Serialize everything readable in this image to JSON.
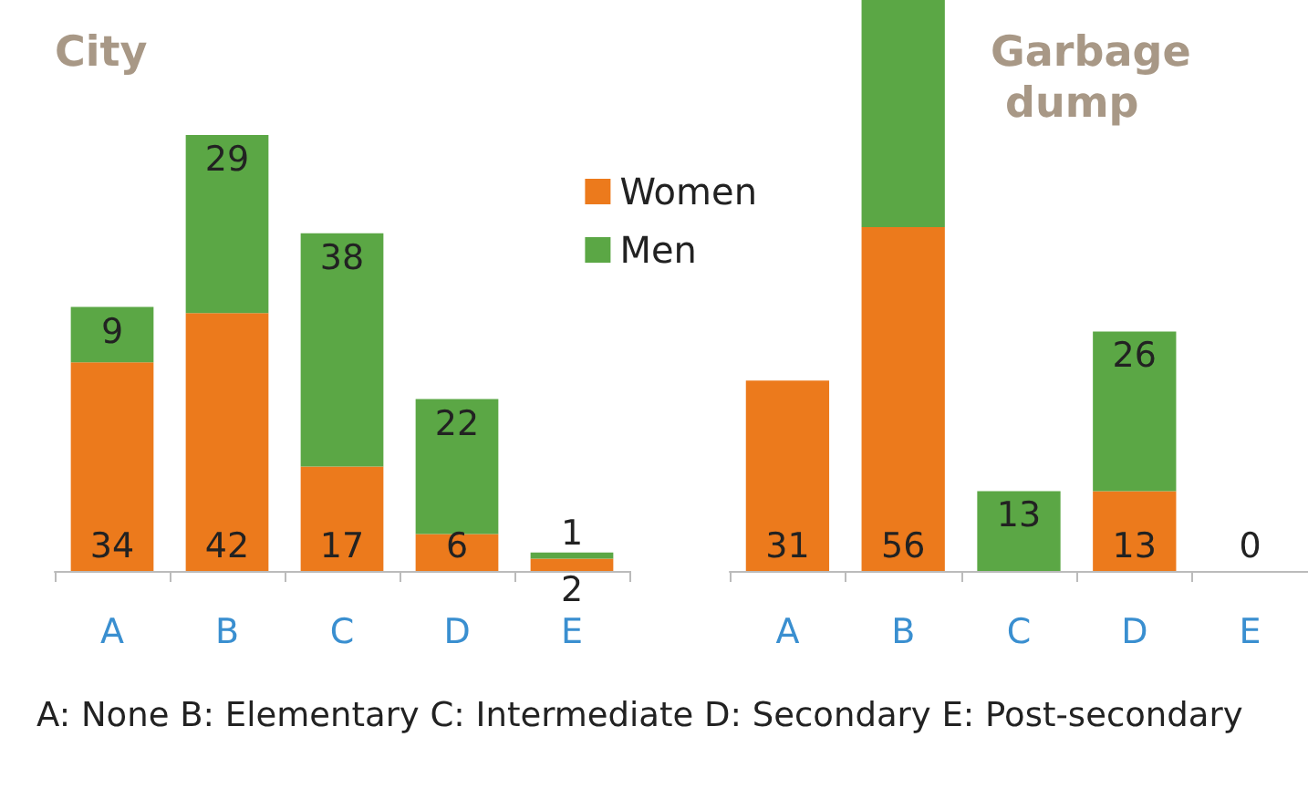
{
  "chart_data": [
    {
      "type": "bar",
      "title": "City",
      "stacked": true,
      "categories": [
        "A",
        "B",
        "C",
        "D",
        "E"
      ],
      "legend": "top right",
      "annotations": [
        "A: None  B: Elementary  C: Intermediate  D: Secondary  E: Post-secondary"
      ],
      "series": [
        {
          "name": "Women",
          "color": "#ec7a1c",
          "values": [
            34,
            42,
            17,
            6,
            2
          ],
          "value_labels": [
            "34",
            "42",
            "17",
            "6",
            "2"
          ]
        },
        {
          "name": "Men",
          "color": "#5ba745",
          "values": [
            9,
            29,
            38,
            22,
            1
          ],
          "value_labels": [
            "9",
            "29",
            "38",
            "22",
            "1"
          ]
        }
      ]
    },
    {
      "type": "bar",
      "title": "Garbage dump",
      "stacked": true,
      "categories": [
        "A",
        "B",
        "C",
        "D",
        "E"
      ],
      "series": [
        {
          "color": "#ec7a1c",
          "values": [
            31,
            56,
            0,
            13,
            0
          ],
          "value_labels": [
            "31",
            "56",
            null,
            "13",
            "0"
          ]
        },
        {
          "color": "#5ba745",
          "values": [
            0,
            37,
            13,
            26,
            0
          ],
          "value_labels": [
            null,
            null,
            "13",
            "26",
            null
          ]
        }
      ]
    }
  ]
}
